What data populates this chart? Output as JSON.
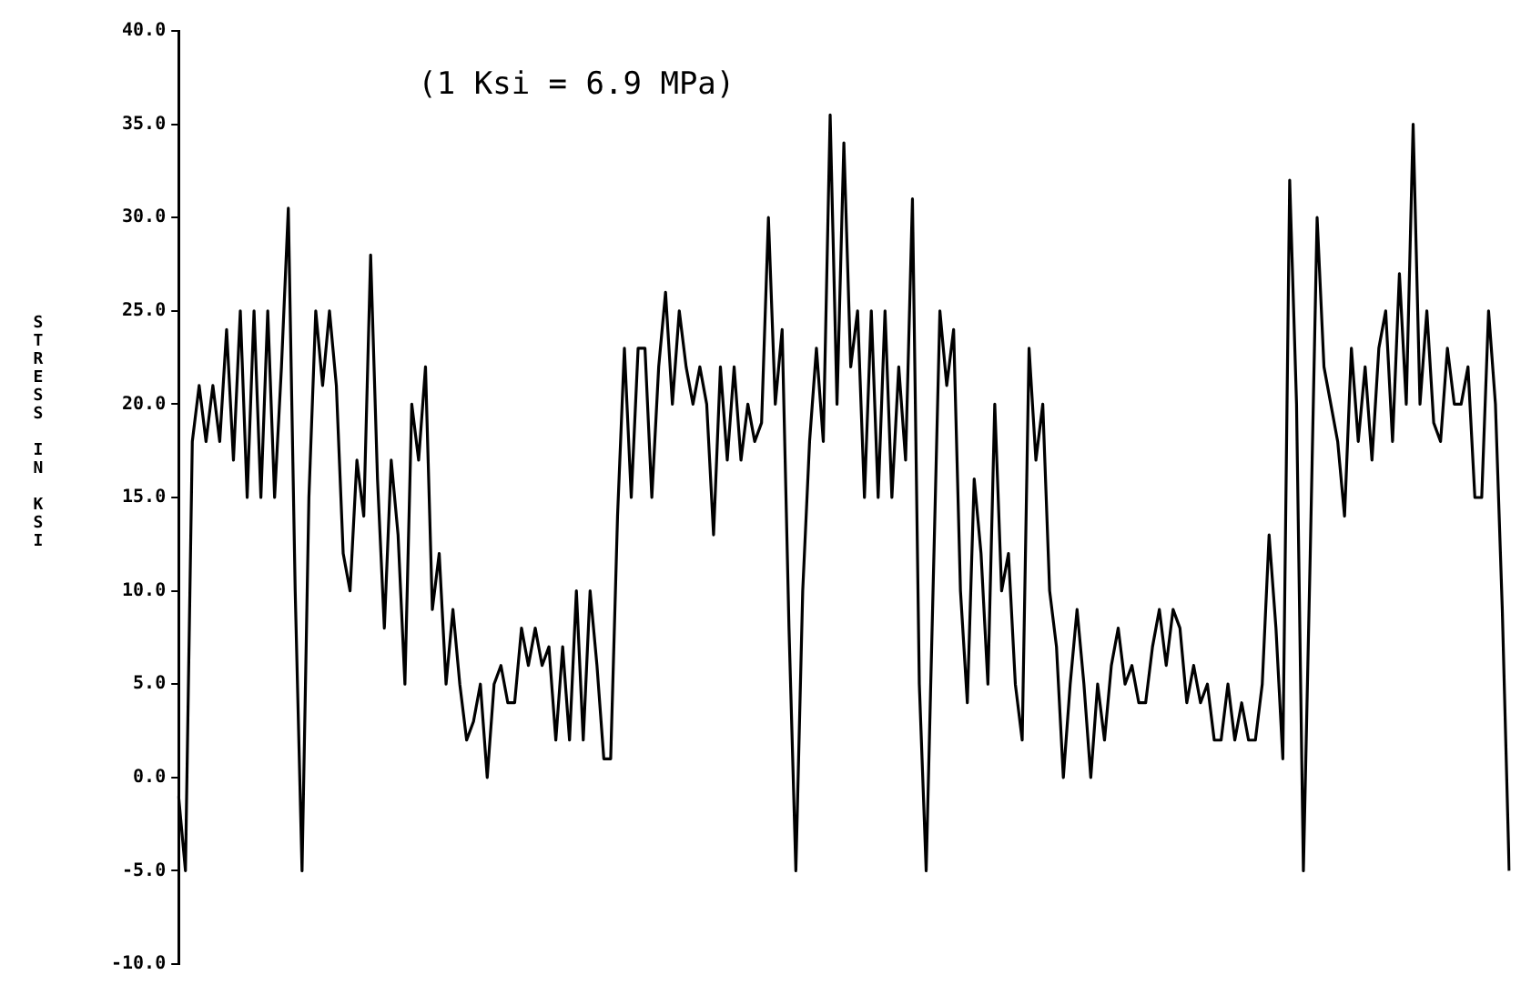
{
  "chart_data": {
    "type": "line",
    "ylabel": "STRESS IN KSI",
    "annotations": [
      "(1 Ksi = 6.9 MPa)"
    ],
    "categories": [
      null,
      null,
      null,
      null,
      null,
      null,
      null,
      null,
      null,
      null,
      null,
      null,
      null,
      null,
      null,
      null,
      null,
      null,
      null,
      null,
      null,
      null,
      null,
      null,
      null,
      null,
      null,
      null,
      null,
      null,
      null,
      null,
      null,
      null,
      null,
      null,
      null,
      null,
      null,
      null,
      null,
      null,
      null,
      null,
      null,
      null,
      null,
      null,
      null,
      null,
      null,
      null,
      null,
      null,
      null,
      null,
      null,
      null,
      null,
      null,
      null,
      null,
      null,
      null,
      null,
      null,
      null,
      null,
      null,
      null,
      null,
      null,
      null,
      null,
      null,
      null,
      null,
      null,
      null,
      null,
      null,
      null,
      null,
      null,
      null,
      null,
      null,
      null,
      null,
      null,
      null,
      null,
      null,
      null,
      null,
      null,
      null,
      null,
      null,
      null,
      null,
      null,
      null,
      null,
      null,
      null,
      null,
      null,
      null,
      null,
      null,
      null,
      null,
      null,
      null,
      null,
      null,
      null,
      null,
      null,
      null,
      null,
      null,
      null,
      null,
      null,
      null,
      null,
      null,
      null,
      null,
      null,
      null,
      null,
      null,
      null,
      null,
      null,
      null,
      null,
      null,
      null,
      null,
      null,
      null,
      null,
      null,
      null,
      null,
      null,
      null,
      null,
      null,
      null,
      null,
      null,
      null,
      null,
      null,
      null,
      null,
      null,
      null,
      null,
      null,
      null,
      null,
      null,
      null,
      null,
      null,
      null,
      null,
      null,
      null,
      null,
      null,
      null,
      null,
      null,
      null,
      null,
      null,
      null,
      null,
      null,
      null,
      null,
      null,
      null,
      null,
      null,
      null,
      null,
      null
    ],
    "series": [
      {
        "color": "#000000",
        "values": [
          -1,
          -5,
          18,
          21,
          18,
          21,
          18,
          24,
          17,
          25,
          15,
          25,
          15,
          25,
          15,
          22,
          30.5,
          10,
          -5,
          15,
          25,
          21,
          25,
          21,
          12,
          10,
          17,
          14,
          28,
          16,
          8,
          17,
          13,
          5,
          20,
          17,
          22,
          9,
          12,
          5,
          9,
          5,
          2,
          3,
          5,
          0,
          5,
          6,
          4,
          4,
          8,
          6,
          8,
          6,
          7,
          2,
          7,
          2,
          10,
          2,
          10,
          6,
          1,
          1,
          14,
          23,
          15,
          23,
          23,
          15,
          22,
          26,
          20,
          25,
          22,
          20,
          22,
          20,
          13,
          22,
          17,
          22,
          17,
          20,
          18,
          19,
          30,
          20,
          24,
          8,
          -5,
          10,
          18,
          23,
          18,
          35.5,
          20,
          34,
          22,
          25,
          15,
          25,
          15,
          25,
          15,
          22,
          17,
          31,
          5,
          -5,
          10,
          25,
          21,
          24,
          10,
          4,
          16,
          12,
          5,
          20,
          10,
          12,
          5,
          2,
          23,
          17,
          20,
          10,
          7,
          0,
          5,
          9,
          5,
          0,
          5,
          2,
          6,
          8,
          5,
          6,
          4,
          4,
          7,
          9,
          6,
          9,
          8,
          4,
          6,
          4,
          5,
          2,
          2,
          5,
          2,
          4,
          2,
          2,
          5,
          13,
          8,
          1,
          32,
          20,
          -5,
          12,
          30,
          22,
          20,
          18,
          14,
          23,
          18,
          22,
          17,
          23,
          25,
          18,
          27,
          20,
          35,
          20,
          25,
          19,
          18,
          23,
          20,
          20,
          22,
          15,
          15,
          25,
          20,
          9,
          -5
        ]
      }
    ],
    "ylim": [
      -10,
      40
    ],
    "yticks": [
      {
        "value": -10,
        "label": "-10.0"
      },
      {
        "value": -5,
        "label": "-5.0"
      },
      {
        "value": 0,
        "label": "0.0"
      },
      {
        "value": 5,
        "label": "5.0"
      },
      {
        "value": 10,
        "label": "10.0"
      },
      {
        "value": 15,
        "label": "15.0"
      },
      {
        "value": 20,
        "label": "20.0"
      },
      {
        "value": 25,
        "label": "25.0"
      },
      {
        "value": 30,
        "label": "30.0"
      },
      {
        "value": 35,
        "label": "35.0"
      },
      {
        "value": 40,
        "label": "40.0"
      }
    ],
    "tick_labels": "y",
    "grid": false,
    "legend": false,
    "marker": "none",
    "line_style": "solid"
  }
}
